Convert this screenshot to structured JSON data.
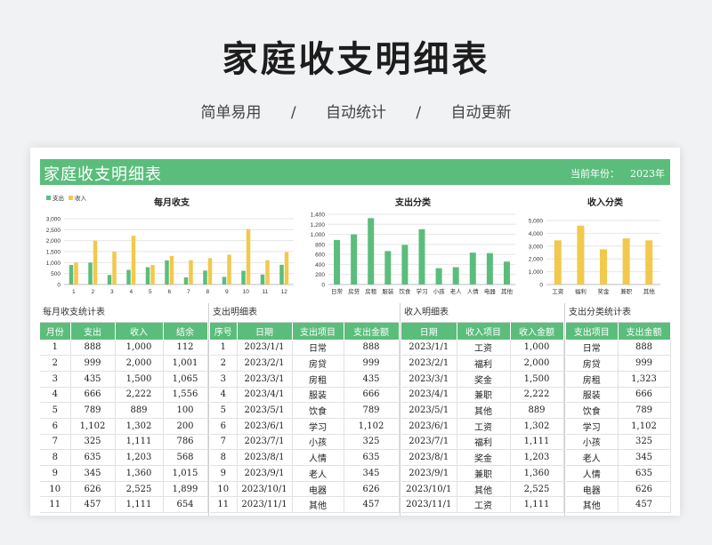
{
  "hero": {
    "title": "家庭收支明细表",
    "subtitle_items": [
      "简单易用",
      "/",
      "自动统计",
      "/",
      "自动更新"
    ]
  },
  "banner": {
    "title": "家庭收支明细表",
    "period_label": "当前年份：",
    "period": "2023年",
    "color": "#5bbd7c"
  },
  "colors": {
    "expense": "#5bbd7c",
    "income": "#f2c94c"
  },
  "chart_data": [
    {
      "type": "bar",
      "title": "每月收支",
      "categories": [
        "1",
        "2",
        "3",
        "4",
        "5",
        "6",
        "7",
        "8",
        "9",
        "10",
        "11",
        "12"
      ],
      "series": [
        {
          "name": "支出",
          "values": [
            888,
            999,
            435,
            666,
            789,
            1102,
            325,
            635,
            345,
            626,
            457,
            900
          ]
        },
        {
          "name": "收入",
          "values": [
            1000,
            2000,
            1500,
            2222,
            889,
            1302,
            1111,
            1203,
            1360,
            2525,
            1111,
            1480
          ]
        }
      ],
      "yticks": [
        "0",
        "500",
        "1,000",
        "1,500",
        "2,000",
        "2,500",
        "3,000"
      ],
      "ylim": [
        0,
        3000
      ],
      "legend": "top-left",
      "grid": true
    },
    {
      "type": "bar",
      "title": "支出分类",
      "categories": [
        "日常",
        "房贷",
        "房租",
        "服装",
        "饮食",
        "学习",
        "小孩",
        "老人",
        "人情",
        "电器",
        "其他"
      ],
      "values": [
        888,
        999,
        1323,
        666,
        789,
        1102,
        325,
        345,
        635,
        626,
        457
      ],
      "yticks": [
        "0",
        "200",
        "400",
        "600",
        "800",
        "1,000",
        "1,200",
        "1,400"
      ],
      "ylim": [
        0,
        1400
      ],
      "grid": true
    },
    {
      "type": "bar",
      "title": "收入分类",
      "categories": [
        "工资",
        "福利",
        "奖金",
        "兼职",
        "其他"
      ],
      "values": [
        3450,
        4600,
        2750,
        3600,
        3450
      ],
      "yticks": [
        "0",
        "1,000",
        "2,000",
        "3,000",
        "4,000",
        "5,000"
      ],
      "ylim": [
        0,
        5000
      ],
      "grid": true
    }
  ],
  "tables": {
    "monthly": {
      "title": "每月收支统计表",
      "headers": [
        "月份",
        "支出",
        "收入",
        "结余"
      ],
      "rows": [
        [
          "1",
          "888",
          "1,000",
          "112"
        ],
        [
          "2",
          "999",
          "2,000",
          "1,001"
        ],
        [
          "3",
          "435",
          "1,500",
          "1,065"
        ],
        [
          "4",
          "666",
          "2,222",
          "1,556"
        ],
        [
          "5",
          "789",
          "889",
          "100"
        ],
        [
          "6",
          "1,102",
          "1,302",
          "200"
        ],
        [
          "7",
          "325",
          "1,111",
          "786"
        ],
        [
          "8",
          "635",
          "1,203",
          "568"
        ],
        [
          "9",
          "345",
          "1,360",
          "1,015"
        ],
        [
          "10",
          "626",
          "2,525",
          "1,899"
        ],
        [
          "11",
          "457",
          "1,111",
          "654"
        ]
      ]
    },
    "expense": {
      "title": "支出明细表",
      "headers": [
        "序号",
        "日期",
        "支出项目",
        "支出金额"
      ],
      "rows": [
        [
          "1",
          "2023/1/1",
          "日常",
          "888"
        ],
        [
          "2",
          "2023/2/1",
          "房贷",
          "999"
        ],
        [
          "3",
          "2023/3/1",
          "房租",
          "435"
        ],
        [
          "4",
          "2023/4/1",
          "服装",
          "666"
        ],
        [
          "5",
          "2023/5/1",
          "饮食",
          "789"
        ],
        [
          "6",
          "2023/6/1",
          "学习",
          "1,102"
        ],
        [
          "7",
          "2023/7/1",
          "小孩",
          "325"
        ],
        [
          "8",
          "2023/8/1",
          "人情",
          "635"
        ],
        [
          "9",
          "2023/9/1",
          "老人",
          "345"
        ],
        [
          "10",
          "2023/10/1",
          "电器",
          "626"
        ],
        [
          "11",
          "2023/11/1",
          "其他",
          "457"
        ]
      ]
    },
    "income": {
      "title": "收入明细表",
      "headers": [
        "日期",
        "收入项目",
        "收入金额"
      ],
      "rows": [
        [
          "2023/1/1",
          "工资",
          "1,000"
        ],
        [
          "2023/2/1",
          "福利",
          "2,000"
        ],
        [
          "2023/3/1",
          "奖金",
          "1,500"
        ],
        [
          "2023/4/1",
          "兼职",
          "2,222"
        ],
        [
          "2023/5/1",
          "其他",
          "889"
        ],
        [
          "2023/6/1",
          "工资",
          "1,302"
        ],
        [
          "2023/7/1",
          "福利",
          "1,111"
        ],
        [
          "2023/8/1",
          "奖金",
          "1,203"
        ],
        [
          "2023/9/1",
          "兼职",
          "1,360"
        ],
        [
          "2023/10/1",
          "其他",
          "2,525"
        ],
        [
          "2023/11/1",
          "工资",
          "1,111"
        ]
      ]
    },
    "category": {
      "title": "支出分类统计表",
      "headers": [
        "支出项目",
        "支出金额"
      ],
      "rows": [
        [
          "日常",
          "888"
        ],
        [
          "房贷",
          "999"
        ],
        [
          "房租",
          "1,323"
        ],
        [
          "服装",
          "666"
        ],
        [
          "饮食",
          "789"
        ],
        [
          "学习",
          "1,102"
        ],
        [
          "小孩",
          "325"
        ],
        [
          "老人",
          "345"
        ],
        [
          "人情",
          "635"
        ],
        [
          "电器",
          "626"
        ],
        [
          "其他",
          "457"
        ]
      ]
    }
  }
}
